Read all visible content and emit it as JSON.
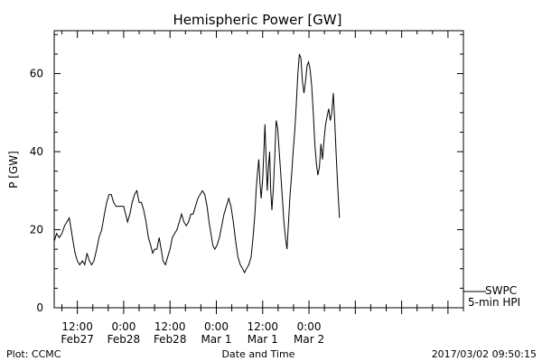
{
  "chart_data": {
    "type": "line",
    "title": "Hemispheric Power [GW]",
    "ylabel": "P [GW]",
    "xlabel": "Date and Time",
    "ylim": [
      0,
      71
    ],
    "xlim": [
      6,
      112
    ],
    "x_unit": "hours after 2017/02/27 00:00",
    "y_ticks": [
      0,
      20,
      40,
      60
    ],
    "x_ticks": [
      {
        "x": 12,
        "line1": "12:00",
        "line2": "Feb27"
      },
      {
        "x": 24,
        "line1": "0:00",
        "line2": "Feb28"
      },
      {
        "x": 36,
        "line1": "12:00",
        "line2": "Feb28"
      },
      {
        "x": 48,
        "line1": "0:00",
        "line2": "Mar 1"
      },
      {
        "x": 60,
        "line1": "12:00",
        "line2": "Mar 1"
      },
      {
        "x": 72,
        "line1": "0:00",
        "line2": "Mar 2"
      }
    ],
    "legend": {
      "line1": "SWPC",
      "line2": "5-min HPI",
      "placement": "bottom-right outside"
    },
    "series": [
      {
        "points": [
          [
            6,
            17
          ],
          [
            6.6,
            19
          ],
          [
            7.3,
            18
          ],
          [
            8,
            19
          ],
          [
            8.7,
            21
          ],
          [
            9.3,
            22
          ],
          [
            9.9,
            23
          ],
          [
            10.4,
            20
          ],
          [
            10.9,
            17
          ],
          [
            11.4,
            14
          ],
          [
            12,
            12
          ],
          [
            12.6,
            11
          ],
          [
            13.3,
            12
          ],
          [
            13.9,
            11
          ],
          [
            14.5,
            14
          ],
          [
            15.1,
            12
          ],
          [
            15.7,
            11
          ],
          [
            16.3,
            12
          ],
          [
            17,
            15
          ],
          [
            17.6,
            18
          ],
          [
            18.3,
            20
          ],
          [
            19,
            24
          ],
          [
            19.6,
            27
          ],
          [
            20.2,
            29
          ],
          [
            20.8,
            29
          ],
          [
            21.4,
            27
          ],
          [
            22,
            26
          ],
          [
            22.8,
            26
          ],
          [
            23.5,
            26
          ],
          [
            24,
            26
          ],
          [
            24.5,
            24
          ],
          [
            25,
            22
          ],
          [
            25.6,
            24
          ],
          [
            26.2,
            27
          ],
          [
            26.8,
            29
          ],
          [
            27.4,
            30
          ],
          [
            28,
            27
          ],
          [
            28.6,
            27
          ],
          [
            29.2,
            25
          ],
          [
            29.8,
            22
          ],
          [
            30.4,
            18
          ],
          [
            31,
            16
          ],
          [
            31.5,
            14
          ],
          [
            32,
            15
          ],
          [
            32.6,
            15
          ],
          [
            33.2,
            18
          ],
          [
            33.7,
            15
          ],
          [
            34.2,
            12
          ],
          [
            34.8,
            11
          ],
          [
            35.4,
            13
          ],
          [
            36,
            15
          ],
          [
            36.6,
            18
          ],
          [
            37.2,
            19
          ],
          [
            37.8,
            20
          ],
          [
            38.4,
            22
          ],
          [
            39,
            24
          ],
          [
            39.6,
            22
          ],
          [
            40.2,
            21
          ],
          [
            40.8,
            22
          ],
          [
            41.4,
            24
          ],
          [
            42,
            24
          ],
          [
            42.6,
            26
          ],
          [
            43.2,
            28
          ],
          [
            43.8,
            29
          ],
          [
            44.4,
            30
          ],
          [
            45,
            29
          ],
          [
            45.6,
            26
          ],
          [
            46.1,
            22
          ],
          [
            46.6,
            19
          ],
          [
            47.1,
            16
          ],
          [
            47.6,
            15
          ],
          [
            48.2,
            16
          ],
          [
            48.8,
            18
          ],
          [
            49.4,
            21
          ],
          [
            50,
            24
          ],
          [
            50.6,
            26
          ],
          [
            51.2,
            28
          ],
          [
            51.8,
            26
          ],
          [
            52.4,
            22
          ],
          [
            53,
            17
          ],
          [
            53.6,
            13
          ],
          [
            54.2,
            11
          ],
          [
            54.8,
            10
          ],
          [
            55.3,
            9
          ],
          [
            55.8,
            10
          ],
          [
            56.4,
            11
          ],
          [
            57,
            13
          ],
          [
            57.5,
            18
          ],
          [
            58,
            24
          ],
          [
            58.3,
            30
          ],
          [
            58.7,
            35
          ],
          [
            59,
            38
          ],
          [
            59.3,
            32
          ],
          [
            59.6,
            28
          ],
          [
            60,
            33
          ],
          [
            60.3,
            40
          ],
          [
            60.6,
            47
          ],
          [
            60.9,
            38
          ],
          [
            61.2,
            30
          ],
          [
            61.5,
            36
          ],
          [
            61.8,
            40
          ],
          [
            62.1,
            30
          ],
          [
            62.4,
            25
          ],
          [
            62.8,
            31
          ],
          [
            63.2,
            40
          ],
          [
            63.5,
            48
          ],
          [
            63.9,
            46
          ],
          [
            64.3,
            40
          ],
          [
            64.7,
            34
          ],
          [
            65.1,
            28
          ],
          [
            65.5,
            22
          ],
          [
            65.9,
            18
          ],
          [
            66.3,
            15
          ],
          [
            66.7,
            22
          ],
          [
            67.1,
            29
          ],
          [
            67.5,
            34
          ],
          [
            67.9,
            40
          ],
          [
            68.3,
            45
          ],
          [
            68.7,
            52
          ],
          [
            69.1,
            60
          ],
          [
            69.5,
            65
          ],
          [
            69.9,
            64
          ],
          [
            70.3,
            58
          ],
          [
            70.7,
            55
          ],
          [
            71.1,
            58
          ],
          [
            71.5,
            62
          ],
          [
            71.9,
            63
          ],
          [
            72.3,
            61
          ],
          [
            72.7,
            57
          ],
          [
            73.1,
            50
          ],
          [
            73.5,
            42
          ],
          [
            73.9,
            37
          ],
          [
            74.3,
            34
          ],
          [
            74.7,
            36
          ],
          [
            75.1,
            42
          ],
          [
            75.5,
            38
          ],
          [
            75.9,
            43
          ],
          [
            76.3,
            47
          ],
          [
            76.7,
            49
          ],
          [
            77.1,
            51
          ],
          [
            77.5,
            48
          ],
          [
            77.9,
            50
          ],
          [
            78.3,
            55
          ],
          [
            78.7,
            47
          ],
          [
            79.1,
            38
          ],
          [
            79.5,
            30
          ],
          [
            79.9,
            23
          ]
        ]
      }
    ]
  },
  "footer": {
    "left": "Plot: CCMC",
    "center": "Date and Time",
    "right": "2017/03/02 09:50:15"
  }
}
